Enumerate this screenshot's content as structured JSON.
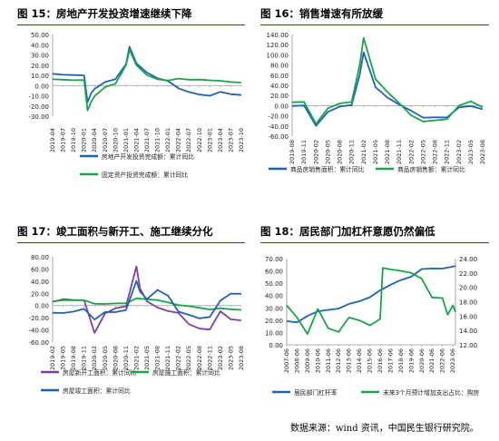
{
  "source_note": "数据来源：wind 资讯，中国民生银行研究院。",
  "chart_data": [
    {
      "type": "line",
      "title": "图 15：房地产开发投资增速继续下降",
      "ylim": [
        -30,
        50
      ],
      "yticks": [
        "50.00",
        "40.00",
        "30.00",
        "20.00",
        "10.00",
        "0.00",
        "-10.00",
        "-20.00",
        "-30.00"
      ],
      "xticks": [
        "2019-04",
        "2019-07",
        "2019-10",
        "2020-01",
        "2020-04",
        "2020-07",
        "2020-10",
        "2021-01",
        "2021-04",
        "2021-07",
        "2021-10",
        "2022-01",
        "2022-04",
        "2022-07",
        "2022-10",
        "2023-01",
        "2023-04",
        "2023-07",
        "2023-10"
      ],
      "x": [
        "2019-04",
        "2019-07",
        "2019-10",
        "2020-01",
        "2020-02",
        "2020-03",
        "2020-04",
        "2020-07",
        "2020-10",
        "2021-01",
        "2021-02",
        "2021-04",
        "2021-07",
        "2021-10",
        "2022-01",
        "2022-04",
        "2022-07",
        "2022-10",
        "2023-01",
        "2023-04",
        "2023-07",
        "2023-10"
      ],
      "grid": false,
      "legend": "bottom",
      "series": [
        {
          "name": "房地产开发投资完成额：累计同比",
          "color": "#1f63b0",
          "values": [
            11.5,
            10.5,
            10.3,
            9.9,
            -16.3,
            -7.7,
            -3.3,
            3.4,
            6.3,
            21,
            38,
            21.6,
            12.7,
            7.2,
            4.4,
            -2.7,
            -6.4,
            -8.8,
            -10,
            -6.2,
            -8.5,
            -9.3
          ]
        },
        {
          "name": "固定资产投资完成额：累计同比",
          "color": "#1aa34a",
          "values": [
            6.1,
            5.7,
            5.2,
            5.4,
            -24.5,
            -16.1,
            -10.3,
            -1.6,
            1.8,
            20,
            35,
            19.9,
            10.3,
            6.1,
            4.9,
            6.8,
            5.7,
            5.8,
            5.1,
            4.7,
            3.4,
            2.9
          ]
        }
      ]
    },
    {
      "type": "line",
      "title": "图 16：销售增速有所放缓",
      "ylim": [
        -60,
        140
      ],
      "yticks": [
        "140.00",
        "120.00",
        "100.00",
        "80.00",
        "60.00",
        "40.00",
        "20.00",
        "0.00",
        "-20.00",
        "-40.00",
        "-60.00"
      ],
      "xticks": [
        "2019-08",
        "2019-11",
        "2020-02",
        "2020-05",
        "2020-08",
        "2020-11",
        "2021-02",
        "2021-05",
        "2021-08",
        "2021-11",
        "2022-02",
        "2022-05",
        "2022-08",
        "2022-11",
        "2023-02",
        "2023-05",
        "2023-08"
      ],
      "x": [
        "2019-08",
        "2019-11",
        "2020-02",
        "2020-05",
        "2020-08",
        "2020-11",
        "2021-01",
        "2021-02",
        "2021-05",
        "2021-08",
        "2021-11",
        "2022-02",
        "2022-05",
        "2022-08",
        "2022-11",
        "2023-02",
        "2023-05",
        "2023-08"
      ],
      "grid": false,
      "legend": "bottom",
      "series": [
        {
          "name": "商品房销售面积：累计同比",
          "color": "#1f63b0",
          "values": [
            -0.6,
            0.2,
            -39.9,
            -12.3,
            -1.8,
            1.3,
            60,
            104.9,
            36.3,
            15.9,
            1.9,
            -10.1,
            -23.6,
            -23.0,
            -23.3,
            -3.6,
            -0.9,
            -7.1
          ]
        },
        {
          "name": "商品房销售额：累计同比",
          "color": "#1aa34a",
          "values": [
            6.6,
            7.3,
            -35.9,
            -5.4,
            4.4,
            7.2,
            80,
            133.4,
            52.4,
            26.8,
            4.8,
            -19.3,
            -31.5,
            -28.9,
            -26.6,
            -0.1,
            8.4,
            -3.2
          ]
        }
      ]
    },
    {
      "type": "line",
      "title": "图 17：竣工面积与新开工、施工继续分化",
      "ylim": [
        -60,
        80
      ],
      "yticks": [
        "80.00",
        "60.00",
        "40.00",
        "20.00",
        "0.00",
        "-20.00",
        "-40.00",
        "-60.00"
      ],
      "xticks": [
        "2019-02",
        "2019-05",
        "2019-08",
        "2019-11",
        "2020-02",
        "2020-05",
        "2020-08",
        "2020-11",
        "2021-02",
        "2021-05",
        "2021-08",
        "2021-11",
        "2022-02",
        "2022-05",
        "2022-08",
        "2022-11",
        "2023-02",
        "2023-05",
        "2023-08"
      ],
      "x": [
        "2019-02",
        "2019-05",
        "2019-08",
        "2019-11",
        "2020-02",
        "2020-05",
        "2020-08",
        "2020-11",
        "2021-02",
        "2021-03",
        "2021-05",
        "2021-08",
        "2021-11",
        "2022-02",
        "2022-05",
        "2022-08",
        "2022-11",
        "2023-02",
        "2023-05",
        "2023-08"
      ],
      "grid": false,
      "legend": "bottom",
      "series": [
        {
          "name": "房屋新开工面积：累计同比",
          "color": "#7b3fa8",
          "values": [
            6,
            10.5,
            8.9,
            8.6,
            -44.9,
            -12.8,
            -4.6,
            -1.2,
            64.3,
            28.2,
            6.9,
            -3.2,
            -9.1,
            -12.2,
            -30.6,
            -37.8,
            -39.4,
            -9.4,
            -22.6,
            -24.4
          ]
        },
        {
          "name": "房屋施工面积：累计同比",
          "color": "#1aa34a",
          "values": [
            6.8,
            8.8,
            8.8,
            8.7,
            2.9,
            2.6,
            3.4,
            3.7,
            11.8,
            11.2,
            10.1,
            8.9,
            5.2,
            0.7,
            -1.0,
            -3.7,
            -6.5,
            -4.4,
            -6.2,
            -7.1
          ]
        },
        {
          "name": "房屋竣工面积：累计同比",
          "color": "#1f63b0",
          "values": [
            -11.9,
            -12.4,
            -10,
            -5.5,
            -22.9,
            -10.7,
            -10.8,
            -7.3,
            40.4,
            22.9,
            10.4,
            25.7,
            16.3,
            -9.9,
            -15.3,
            -21.1,
            -18.7,
            8,
            19.6,
            19.2
          ]
        }
      ]
    },
    {
      "type": "line",
      "title": "图 18：居民部门加杠杆意愿仍然偏低",
      "ylim": [
        0,
        70
      ],
      "yticks": [
        "70.00",
        "60.00",
        "50.00",
        "40.00",
        "30.00",
        "20.00",
        "10.00",
        "0.00"
      ],
      "y2lim": [
        12,
        24
      ],
      "y2ticks": [
        "24.00",
        "22.00",
        "20.00",
        "18.00",
        "16.00",
        "14.00",
        "12.00"
      ],
      "xticks": [
        "2007-06",
        "2008-06",
        "2009-06",
        "2010-06",
        "2011-06",
        "2012-06",
        "2013-06",
        "2014-06",
        "2015-06",
        "2016-06",
        "2017-06",
        "2018-06",
        "2019-06",
        "2020-06",
        "2021-06",
        "2022-06",
        "2023-06"
      ],
      "grid": false,
      "legend": "bottom",
      "series": [
        {
          "name": "居民部门杠杆率",
          "color": "#1f63b0",
          "axis": "left",
          "x": [
            "2007-06",
            "2008-06",
            "2009-06",
            "2010-06",
            "2011-06",
            "2012-06",
            "2013-06",
            "2014-06",
            "2015-06",
            "2016-06",
            "2017-06",
            "2018-06",
            "2019-06",
            "2020-06",
            "2021-06",
            "2022-06",
            "2023-06",
            "2023-09"
          ],
          "values": [
            19.2,
            18.2,
            23.4,
            27.2,
            28.4,
            29.4,
            33.2,
            35.4,
            38.6,
            44.3,
            48.8,
            52.6,
            55.3,
            61.5,
            62,
            61.9,
            63.5,
            64
          ]
        },
        {
          "name": "未来3个月预计增加支出占比：购房",
          "color": "#1aa34a",
          "axis": "right",
          "x": [
            "2007-06",
            "2008-06",
            "2009-06",
            "2010-06",
            "2011-06",
            "2012-06",
            "2013-06",
            "2014-06",
            "2015-06",
            "2016-06",
            "2016-09",
            "2017-06",
            "2018-06",
            "2019-06",
            "2020-06",
            "2021-06",
            "2022-06",
            "2022-12",
            "2023-06",
            "2023-09"
          ],
          "values": [
            17.5,
            15.8,
            13.5,
            17,
            14.3,
            13.8,
            15.8,
            15.4,
            14.7,
            15.6,
            22.7,
            22.5,
            22.3,
            22,
            21.2,
            18.6,
            18.5,
            16.2,
            17.5,
            16.6
          ]
        }
      ]
    }
  ]
}
